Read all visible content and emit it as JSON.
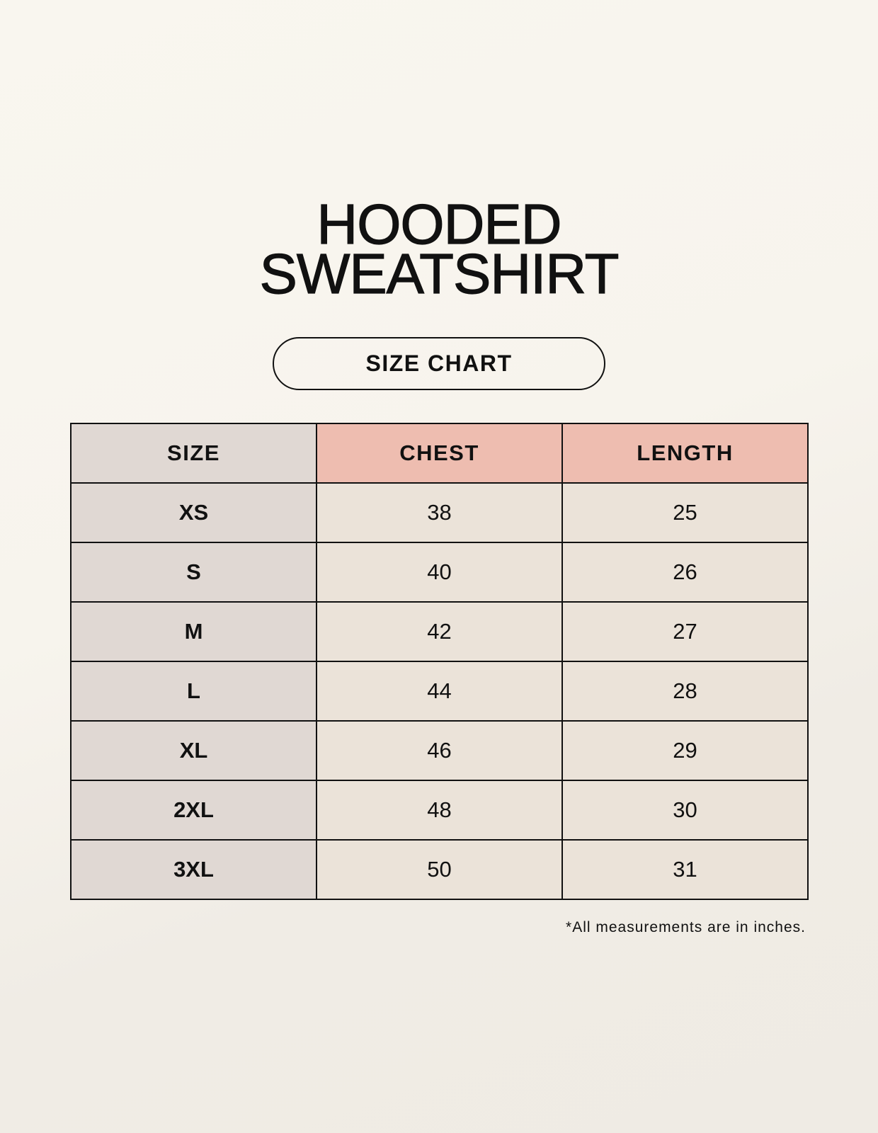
{
  "title_line1": "HOODED",
  "title_line2": "SWEATSHIRT",
  "badge": "SIZE CHART",
  "table": {
    "headers": [
      "SIZE",
      "CHEST",
      "LENGTH"
    ],
    "rows": [
      [
        "XS",
        "38",
        "25"
      ],
      [
        "S",
        "40",
        "26"
      ],
      [
        "M",
        "42",
        "27"
      ],
      [
        "L",
        "44",
        "28"
      ],
      [
        "XL",
        "46",
        "29"
      ],
      [
        "2XL",
        "48",
        "30"
      ],
      [
        "3XL",
        "50",
        "31"
      ]
    ]
  },
  "footnote": "*All measurements are in inches.",
  "colors": {
    "size_column": "#e0d8d3",
    "measure_header": "#eebdb0",
    "cell": "#ebe3d9",
    "background": "#f8f5ee"
  }
}
